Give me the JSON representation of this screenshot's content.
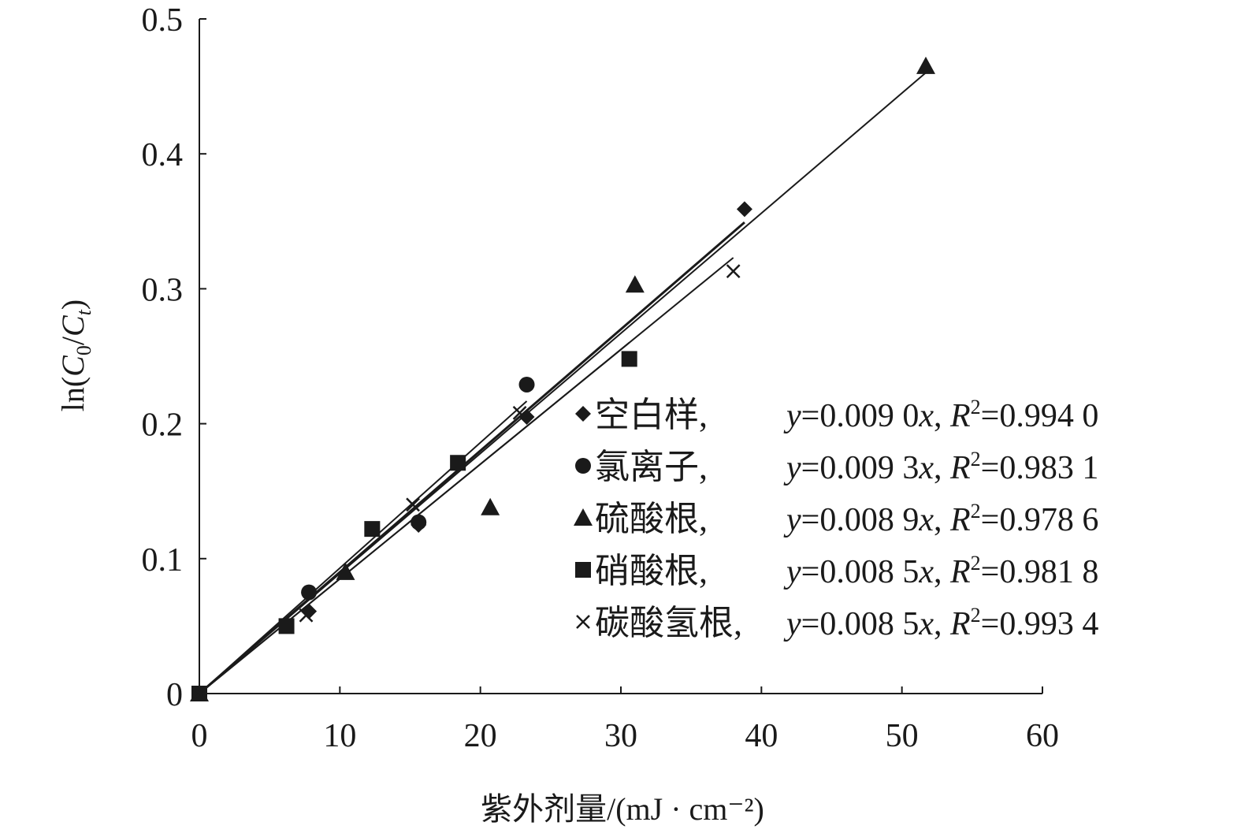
{
  "chart_data": {
    "type": "scatter",
    "xlabel": "紫外剂量/(mJ · cm⁻²)",
    "ylabel": {
      "prefix": "ln(",
      "c": "C",
      "sub0": "0",
      "slash": "/",
      "sub_t": "t",
      "suffix": ")"
    },
    "xlim": [
      0,
      60
    ],
    "ylim": [
      0,
      0.5
    ],
    "xticks": [
      0,
      10,
      20,
      30,
      40,
      50,
      60
    ],
    "yticks": [
      0,
      0.1,
      0.2,
      0.3,
      0.4,
      0.5
    ],
    "xtick_labels": [
      "0",
      "10",
      "20",
      "30",
      "40",
      "50",
      "60"
    ],
    "ytick_labels": [
      "0",
      "0.1",
      "0.2",
      "0.3",
      "0.4",
      "0.5"
    ],
    "grid": false,
    "legend_position": "bottom-right",
    "series": [
      {
        "name": "空白样,",
        "marker": "diamond",
        "points": [
          [
            0,
            0
          ],
          [
            7.8,
            0.061
          ],
          [
            15.6,
            0.125
          ],
          [
            23.3,
            0.205
          ],
          [
            38.8,
            0.359
          ]
        ],
        "fit": {
          "slope": 0.009,
          "x_end": 38.8
        },
        "equation": {
          "y": "y",
          "eq": "=0.009 0",
          "x": "x",
          "sep": ", ",
          "r": "R",
          "r_exp": "2",
          "r_val": "=0.994 0"
        }
      },
      {
        "name": "氯离子,",
        "marker": "circle",
        "points": [
          [
            0,
            0
          ],
          [
            7.8,
            0.075
          ],
          [
            15.6,
            0.127
          ],
          [
            23.3,
            0.229
          ]
        ],
        "fit": {
          "slope": 0.0093,
          "x_end": 23.3
        },
        "equation": {
          "y": "y",
          "eq": "=0.009 3",
          "x": "x",
          "sep": ", ",
          "r": "R",
          "r_exp": "2",
          "r_val": "=0.983 1"
        }
      },
      {
        "name": "硫酸根,",
        "marker": "triangle",
        "points": [
          [
            0,
            0
          ],
          [
            10.4,
            0.09
          ],
          [
            20.7,
            0.138
          ],
          [
            31.0,
            0.303
          ],
          [
            51.7,
            0.465
          ]
        ],
        "fit": {
          "slope": 0.0089,
          "x_end": 51.7
        },
        "equation": {
          "y": "y",
          "eq": "=0.008 9",
          "x": "x",
          "sep": ", ",
          "r": "R",
          "r_exp": "2",
          "r_val": "=0.978 6"
        }
      },
      {
        "name": "硝酸根,",
        "marker": "square",
        "points": [
          [
            0,
            0
          ],
          [
            6.2,
            0.05
          ],
          [
            12.3,
            0.122
          ],
          [
            18.4,
            0.171
          ],
          [
            30.6,
            0.248
          ]
        ],
        "fit": {
          "slope": 0.0085,
          "x_end": 30.6
        },
        "equation": {
          "y": "y",
          "eq": "=0.008 5",
          "x": "x",
          "sep": ", ",
          "r": "R",
          "r_exp": "2",
          "r_val": "=0.981 8"
        }
      },
      {
        "name": "碳酸氢根,",
        "marker": "cross",
        "points": [
          [
            0,
            0
          ],
          [
            7.6,
            0.058
          ],
          [
            15.2,
            0.14
          ],
          [
            22.8,
            0.208
          ],
          [
            38.0,
            0.313
          ]
        ],
        "fit": {
          "slope": 0.0085,
          "x_end": 38.0
        },
        "equation": {
          "y": "y",
          "eq": "=0.008 5",
          "x": "x",
          "sep": ", ",
          "r": "R",
          "r_exp": "2",
          "r_val": "=0.993 4"
        }
      }
    ]
  }
}
